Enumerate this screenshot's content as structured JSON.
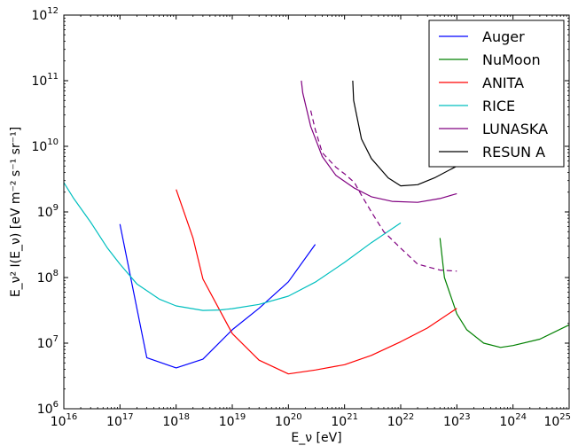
{
  "chart_data": {
    "type": "line",
    "title": "",
    "xlabel": "E_ν [eV]",
    "ylabel": "E_ν² I(E_ν) [eV m⁻² s⁻¹ sr⁻¹]",
    "xscale": "log",
    "yscale": "log",
    "xlim": [
      1e+16,
      1e+25
    ],
    "ylim": [
      1000000.0,
      1000000000000.0
    ],
    "x_ticks": [
      {
        "value": 1e+16,
        "base": "10",
        "exp": "16"
      },
      {
        "value": 1e+17,
        "base": "10",
        "exp": "17"
      },
      {
        "value": 1e+18,
        "base": "10",
        "exp": "18"
      },
      {
        "value": 1e+19,
        "base": "10",
        "exp": "19"
      },
      {
        "value": 1e+20,
        "base": "10",
        "exp": "20"
      },
      {
        "value": 1e+21,
        "base": "10",
        "exp": "21"
      },
      {
        "value": 1e+22,
        "base": "10",
        "exp": "22"
      },
      {
        "value": 1e+23,
        "base": "10",
        "exp": "23"
      },
      {
        "value": 1e+24,
        "base": "10",
        "exp": "24"
      },
      {
        "value": 1e+25,
        "base": "10",
        "exp": "25"
      }
    ],
    "y_ticks": [
      {
        "value": 1000000.0,
        "base": "10",
        "exp": "6"
      },
      {
        "value": 10000000.0,
        "base": "10",
        "exp": "7"
      },
      {
        "value": 100000000.0,
        "base": "10",
        "exp": "8"
      },
      {
        "value": 1000000000.0,
        "base": "10",
        "exp": "9"
      },
      {
        "value": 10000000000.0,
        "base": "10",
        "exp": "10"
      },
      {
        "value": 100000000000.0,
        "base": "10",
        "exp": "11"
      },
      {
        "value": 1000000000000.0,
        "base": "10",
        "exp": "12"
      }
    ],
    "legend_position": "top-right",
    "grid": false,
    "series": [
      {
        "name": "Auger",
        "color": "#0000ff",
        "dash": "solid",
        "points": [
          [
            1e+17,
            650000000.0
          ],
          [
            3e+17,
            6000000.0
          ],
          [
            1e+18,
            4200000.0
          ],
          [
            3e+18,
            5700000.0
          ],
          [
            1e+19,
            16000000.0
          ],
          [
            3e+19,
            34000000.0
          ],
          [
            1e+20,
            86000000.0
          ],
          [
            3e+20,
            320000000.0
          ]
        ]
      },
      {
        "name": "NuMoon",
        "color": "#008000",
        "dash": "solid",
        "points": [
          [
            5e+22,
            400000000.0
          ],
          [
            6e+22,
            100000000.0
          ],
          [
            1e+23,
            28000000.0
          ],
          [
            1.5e+23,
            16000000.0
          ],
          [
            3e+23,
            10000000.0
          ],
          [
            6e+23,
            8600000.0
          ],
          [
            1e+24,
            9200000.0
          ],
          [
            3e+24,
            11500000.0
          ],
          [
            1e+25,
            19000000.0
          ]
        ]
      },
      {
        "name": "ANITA",
        "color": "#ff0000",
        "dash": "solid",
        "points": [
          [
            1e+18,
            2200000000.0
          ],
          [
            2e+18,
            400000000.0
          ],
          [
            3e+18,
            95000000.0
          ],
          [
            1e+19,
            14000000.0
          ],
          [
            3e+19,
            5500000.0
          ],
          [
            1e+20,
            3400000.0
          ],
          [
            3e+20,
            3900000.0
          ],
          [
            1e+21,
            4700000.0
          ],
          [
            3e+21,
            6500000.0
          ],
          [
            1e+22,
            10500000.0
          ],
          [
            3e+22,
            17000000.0
          ],
          [
            1e+23,
            34000000.0
          ]
        ]
      },
      {
        "name": "RICE",
        "color": "#00bfbf",
        "dash": "solid",
        "points": [
          [
            1e+16,
            2800000000.0
          ],
          [
            1.5e+16,
            1600000000.0
          ],
          [
            3e+16,
            700000000.0
          ],
          [
            6e+16,
            280000000.0
          ],
          [
            1e+17,
            160000000.0
          ],
          [
            2e+17,
            80000000.0
          ],
          [
            5e+17,
            47000000.0
          ],
          [
            1e+18,
            37000000.0
          ],
          [
            3e+18,
            31500000.0
          ],
          [
            6e+18,
            32000000.0
          ],
          [
            1e+19,
            33500000.0
          ],
          [
            3e+19,
            39000000.0
          ],
          [
            1e+20,
            52000000.0
          ],
          [
            3e+20,
            85000000.0
          ],
          [
            1e+21,
            170000000.0
          ],
          [
            3e+21,
            340000000.0
          ],
          [
            1e+22,
            680000000.0
          ]
        ]
      },
      {
        "name": "LUNASKA",
        "color": "#800080",
        "dash": "solid",
        "points": [
          [
            1.7e+20,
            100000000000.0
          ],
          [
            1.8e+20,
            65000000000.0
          ],
          [
            2.5e+20,
            20000000000.0
          ],
          [
            4e+20,
            7000000000.0
          ],
          [
            7e+20,
            3600000000.0
          ],
          [
            1.5e+21,
            2300000000.0
          ],
          [
            3e+21,
            1700000000.0
          ],
          [
            7e+21,
            1450000000.0
          ],
          [
            2e+22,
            1400000000.0
          ],
          [
            5e+22,
            1600000000.0
          ],
          [
            1e+23,
            1900000000.0
          ]
        ]
      },
      {
        "name": "",
        "color": "#800080",
        "dash": "dashed",
        "points": [
          [
            2.5e+20,
            35000000000.0
          ],
          [
            3e+20,
            18000000000.0
          ],
          [
            4e+20,
            8000000000.0
          ],
          [
            7e+20,
            4800000000.0
          ],
          [
            1e+21,
            3800000000.0
          ],
          [
            1.5e+21,
            2800000000.0
          ],
          [
            2e+21,
            1800000000.0
          ],
          [
            3e+21,
            1000000000.0
          ],
          [
            5e+21,
            500000000.0
          ],
          [
            1e+22,
            280000000.0
          ],
          [
            2e+22,
            160000000.0
          ],
          [
            5e+22,
            130000000.0
          ],
          [
            1e+23,
            125000000.0
          ]
        ]
      },
      {
        "name": "RESUN A",
        "color": "#000000",
        "dash": "solid",
        "points": [
          [
            1.4e+21,
            100000000000.0
          ],
          [
            1.45e+21,
            50000000000.0
          ],
          [
            2e+21,
            13000000000.0
          ],
          [
            3e+21,
            6500000000.0
          ],
          [
            6e+21,
            3300000000.0
          ],
          [
            1e+22,
            2500000000.0
          ],
          [
            2e+22,
            2600000000.0
          ],
          [
            4e+22,
            3300000000.0
          ],
          [
            1e+23,
            5000000000.0
          ],
          [
            3e+23,
            12000000000.0
          ]
        ]
      }
    ]
  }
}
